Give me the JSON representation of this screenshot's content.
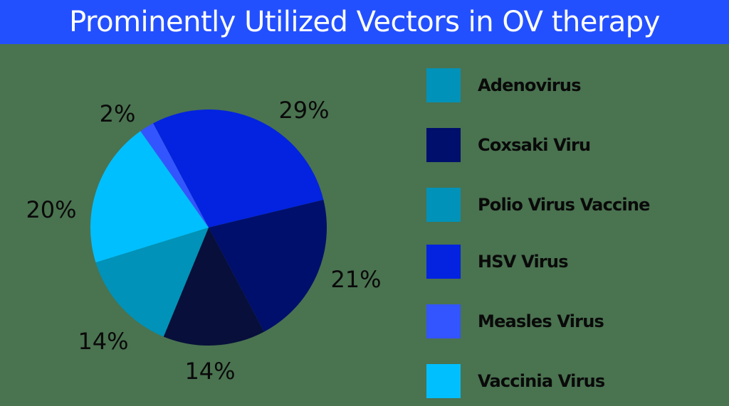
{
  "chart_data": {
    "type": "pie",
    "title": "Prominently Utilized Vectors in OV therapy",
    "note": "Pie wedges and legend entries are recorded separately. Two legend entries (Adenovirus, Polio Virus Vaccine) appear to share the same teal swatch, and no legend entry matches the very dark navy wedge, so wedge-to-label mapping is not fully determinable from the image.",
    "wedges_clockwise_from_top": [
      {
        "value": 29,
        "label": "29%",
        "color": "#0323e0"
      },
      {
        "value": 21,
        "label": "21%",
        "color": "#000f6b"
      },
      {
        "value": 14,
        "label": "14%",
        "color": "#070f3a"
      },
      {
        "value": 14,
        "label": "14%",
        "color": "#0092b8"
      },
      {
        "value": 20,
        "label": "20%",
        "color": "#00bfff"
      },
      {
        "value": 2,
        "label": "2%",
        "color": "#3355ff"
      }
    ],
    "legend": [
      {
        "name": "Adenovirus",
        "color": "#0092b8"
      },
      {
        "name": "Coxsaki Viru",
        "color": "#000f6b"
      },
      {
        "name": "Polio Virus Vaccine",
        "color": "#0092b8"
      },
      {
        "name": "HSV Virus",
        "color": "#0323e0"
      },
      {
        "name": "Measles Virus",
        "color": "#3355ff"
      },
      {
        "name": "Vaccinia Virus",
        "color": "#00bfff"
      }
    ],
    "legend_position": "right"
  },
  "header": {
    "title": "Prominently Utilized Vectors in OV therapy",
    "background": "#2350ff"
  },
  "labels": {
    "hsv": "29%",
    "coxsaki": "21%",
    "dark_navy": "14%",
    "teal": "14%",
    "vaccinia": "20%",
    "measles": "2%"
  },
  "legend": {
    "items": [
      {
        "label": "Adenovirus"
      },
      {
        "label": "Coxsaki Viru"
      },
      {
        "label": "Polio Virus Vaccine"
      },
      {
        "label": "HSV Virus"
      },
      {
        "label": "Measles Virus"
      },
      {
        "label": "Vaccinia Virus"
      }
    ]
  }
}
